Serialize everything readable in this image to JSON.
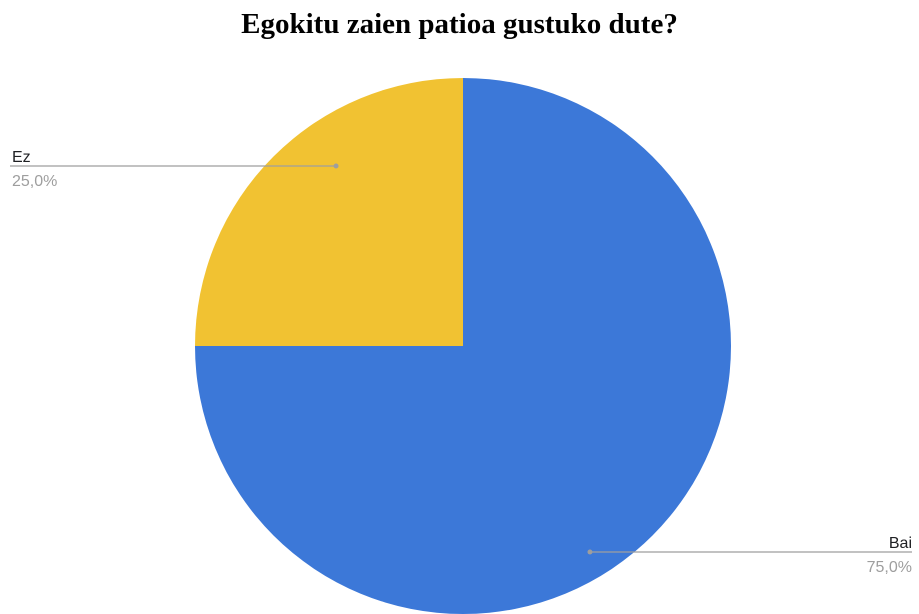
{
  "chart_data": {
    "type": "pie",
    "title": "Egokitu zaien patioa gustuko dute?",
    "slices": [
      {
        "label": "Bai",
        "value": 75.0,
        "percent_label": "75,0%",
        "color": "#3c78d8"
      },
      {
        "label": "Ez",
        "value": 25.0,
        "percent_label": "25,0%",
        "color": "#f1c232"
      }
    ],
    "legend": "none",
    "label_placement": "outside-with-leader-lines"
  }
}
